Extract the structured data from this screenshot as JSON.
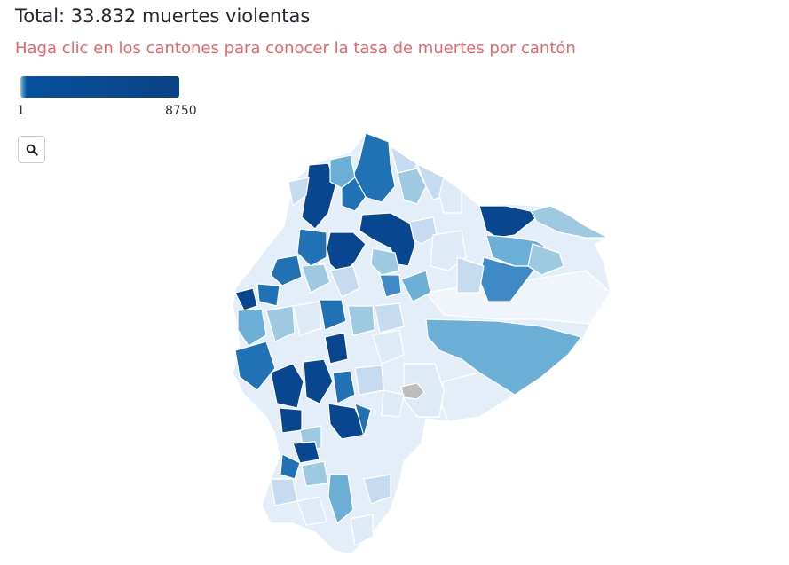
{
  "header": {
    "total_text": "Total: 33.832 muertes violentas",
    "instruction_text": "Haga clic en los cantones para conocer la tasa de muertes por cantón"
  },
  "legend": {
    "min_label": "1",
    "max_label": "8750",
    "gradient_colors": [
      "#deebf7",
      "#9ecae1",
      "#4292c6",
      "#08519c",
      "#0b3f83"
    ]
  },
  "controls": {
    "zoom_icon": "search-icon"
  },
  "map": {
    "country": "Ecuador",
    "unit": "cantón",
    "colors": {
      "very_low": "#e4eef8",
      "low": "#c6dbef",
      "mid_low": "#9ecae1",
      "mid": "#6baed6",
      "mid_high": "#3f8ac6",
      "high": "#2171b5",
      "very_high": "#08478f",
      "no_data": "#bdbdbd"
    }
  }
}
